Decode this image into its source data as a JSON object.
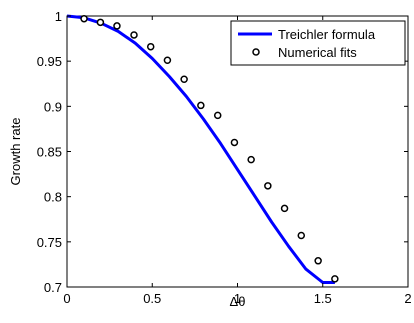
{
  "chart_data": {
    "type": "line",
    "title": "",
    "xlabel": "Δθ",
    "ylabel": "Growth rate",
    "xlim": [
      0,
      2
    ],
    "ylim": [
      0.7,
      1
    ],
    "xticks": [
      0,
      0.5,
      1,
      1.5,
      2
    ],
    "xtick_labels": [
      "0",
      "0.5",
      "1",
      "1.5",
      "2"
    ],
    "yticks": [
      0.7,
      0.75,
      0.8,
      0.85,
      0.9,
      0.95,
      1
    ],
    "ytick_labels": [
      "0.7",
      "0.75",
      "0.8",
      "0.85",
      "0.9",
      "0.95",
      "1"
    ],
    "grid": false,
    "legend_position": "top-right",
    "series": [
      {
        "name": "Treichler formula",
        "style": "line",
        "color": "#0000ff",
        "x": [
          0,
          0.1,
          0.2,
          0.3,
          0.4,
          0.5,
          0.6,
          0.7,
          0.8,
          0.9,
          1.0,
          1.1,
          1.2,
          1.3,
          1.4,
          1.5,
          1.571
        ],
        "y": [
          1.0,
          0.998,
          0.992,
          0.983,
          0.97,
          0.953,
          0.933,
          0.911,
          0.886,
          0.859,
          0.83,
          0.801,
          0.772,
          0.745,
          0.72,
          0.705,
          0.705
        ]
      },
      {
        "name": "Numerical fits",
        "style": "markers",
        "marker": "circle",
        "color": "#000000",
        "x": [
          0.1,
          0.196,
          0.293,
          0.393,
          0.491,
          0.589,
          0.687,
          0.785,
          0.884,
          0.982,
          1.08,
          1.178,
          1.276,
          1.374,
          1.473,
          1.571
        ],
        "y": [
          0.997,
          0.993,
          0.989,
          0.979,
          0.966,
          0.951,
          0.93,
          0.901,
          0.89,
          0.86,
          0.841,
          0.812,
          0.787,
          0.757,
          0.729,
          0.709
        ]
      }
    ]
  }
}
